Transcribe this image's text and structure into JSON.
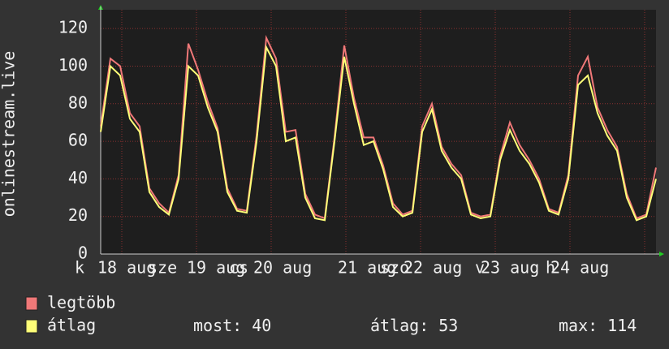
{
  "chart_data": {
    "type": "line",
    "y_label": "onlinestream.live",
    "date_labels": [
      "18 aug",
      "19 aug",
      "20 aug",
      "21 aug",
      "22 aug",
      "23 aug",
      "24 aug"
    ],
    "weekday_labels": [
      "k",
      "sze",
      "cs",
      "szo",
      "v",
      "h"
    ],
    "ylim": [
      0,
      130
    ],
    "yticks": [
      0,
      20,
      40,
      60,
      80,
      100,
      120
    ],
    "grid": true,
    "series": [
      {
        "name": "legtöbb",
        "color": "#f07878",
        "values": [
          68,
          104,
          100,
          75,
          68,
          35,
          27,
          22,
          42,
          112,
          98,
          81,
          67,
          35,
          24,
          23,
          63,
          115,
          104,
          65,
          66,
          32,
          21,
          19,
          62,
          111,
          83,
          62,
          62,
          47,
          27,
          21,
          23,
          68,
          80,
          57,
          48,
          42,
          22,
          20,
          21,
          52,
          70,
          58,
          50,
          40,
          24,
          22,
          42,
          95,
          105,
          78,
          66,
          57,
          32,
          19,
          21,
          46
        ]
      },
      {
        "name": "átlag",
        "color": "#ffff78",
        "values": [
          65,
          100,
          95,
          72,
          65,
          33,
          25,
          21,
          40,
          100,
          95,
          78,
          65,
          33,
          23,
          22,
          60,
          110,
          100,
          60,
          62,
          30,
          19,
          18,
          60,
          105,
          80,
          58,
          60,
          45,
          25,
          20,
          22,
          65,
          77,
          55,
          46,
          40,
          21,
          19,
          20,
          50,
          66,
          55,
          48,
          38,
          23,
          21,
          40,
          90,
          95,
          75,
          63,
          55,
          30,
          18,
          20,
          40
        ]
      }
    ],
    "stats": [
      {
        "label": "most:",
        "value": 40
      },
      {
        "label": "átlag:",
        "value": 53
      },
      {
        "label": "max:",
        "value": 114
      }
    ]
  }
}
